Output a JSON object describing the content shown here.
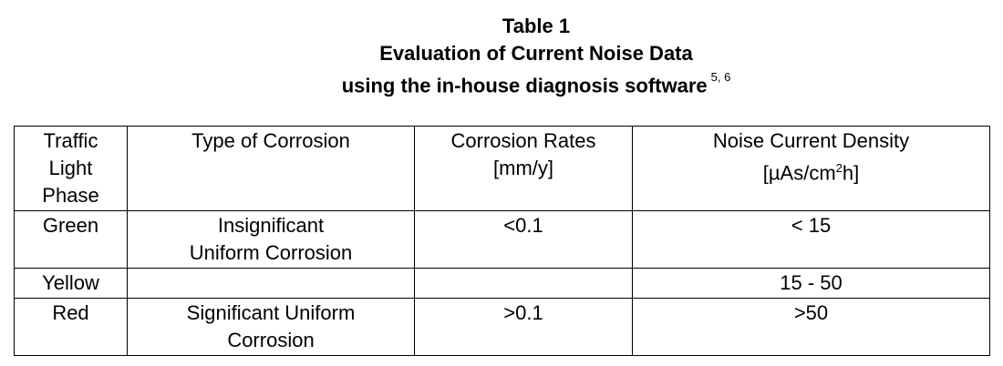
{
  "title": {
    "line1": "Table 1",
    "line2": "Evaluation of Current Noise Data",
    "line3": "using the in-house diagnosis software",
    "superscript": "5, 6"
  },
  "table": {
    "headers": {
      "phase": [
        "Traffic",
        "Light",
        "Phase"
      ],
      "type": "Type of Corrosion",
      "rates": [
        "Corrosion Rates",
        "[mm/y]"
      ],
      "density_prefix": "[µAs/cm",
      "density_sup": "2",
      "density_suffix": "h]",
      "density_title": "Noise Current Density"
    },
    "rows": [
      {
        "phase": "Green",
        "type": [
          "Insignificant",
          "Uniform Corrosion"
        ],
        "rate": "<0.1",
        "density": "< 15"
      },
      {
        "phase": "Yellow",
        "type": [],
        "rate": "",
        "density": "15 - 50"
      },
      {
        "phase": "Red",
        "type": [
          "Significant Uniform",
          "Corrosion"
        ],
        "rate": ">0.1",
        "density": ">50"
      }
    ]
  }
}
